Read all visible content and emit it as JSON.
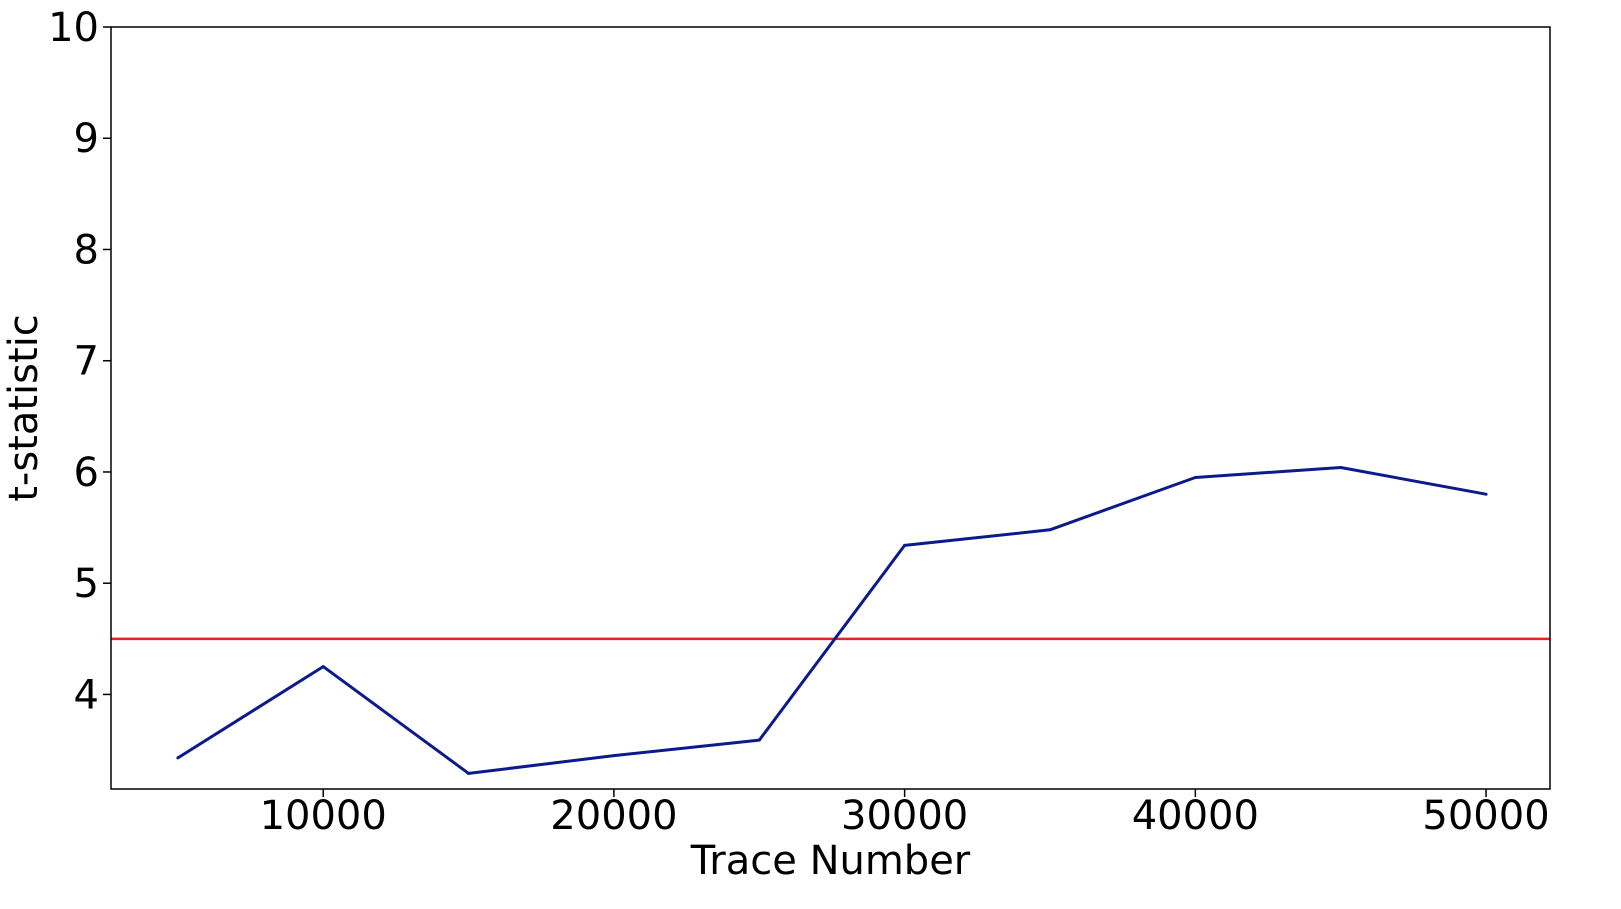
{
  "chart_data": {
    "type": "line",
    "title": "",
    "xlabel": "Trace Number",
    "ylabel": "t-statistic",
    "xlim": [
      2700,
      52200
    ],
    "ylim": [
      3.15,
      10
    ],
    "xticks": [
      10000,
      20000,
      30000,
      40000,
      50000
    ],
    "yticks": [
      4,
      5,
      6,
      7,
      8,
      9,
      10
    ],
    "grid": false,
    "legend": "none",
    "x": [
      5000,
      10000,
      15000,
      20000,
      25000,
      30000,
      35000,
      40000,
      45000,
      50000
    ],
    "series": [
      {
        "color": "#0b1a8c",
        "values": [
          3.43,
          4.25,
          3.29,
          3.45,
          3.59,
          5.34,
          5.48,
          5.95,
          6.04,
          5.8
        ]
      }
    ],
    "threshold": {
      "y": 4.5,
      "color": "#e8251c"
    }
  }
}
